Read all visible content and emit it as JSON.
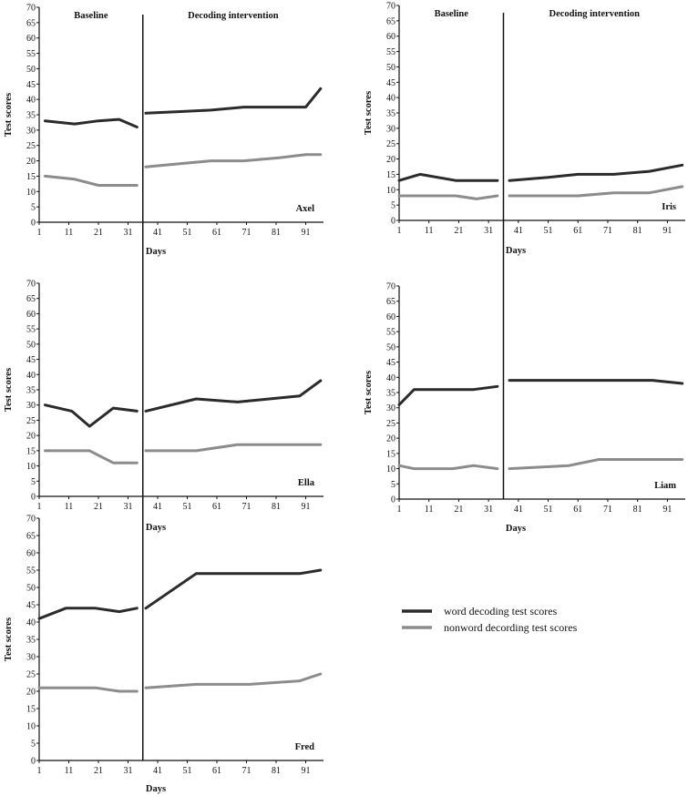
{
  "chart_data": [
    {
      "type": "line",
      "participant": "Axel",
      "ylabel": "Test scores",
      "xlabel": "Days",
      "phase_labels": [
        "Baseline",
        "Decoding intervention"
      ],
      "phase_change_day": 36,
      "yticks": [
        0,
        5,
        10,
        15,
        20,
        25,
        30,
        35,
        40,
        45,
        50,
        55,
        60,
        65,
        70
      ],
      "xticks": [
        1,
        11,
        21,
        31,
        41,
        51,
        61,
        71,
        81,
        91
      ],
      "xlim": [
        1,
        97
      ],
      "ylim": [
        0,
        70
      ],
      "series": [
        {
          "name": "word decoding test scores",
          "color": "#2b2b2b",
          "baseline": [
            [
              3,
              33
            ],
            [
              13,
              32
            ],
            [
              21,
              33
            ],
            [
              28,
              33.5
            ],
            [
              34,
              31
            ]
          ],
          "intervention": [
            [
              37,
              35.5
            ],
            [
              48,
              36
            ],
            [
              59,
              36.5
            ],
            [
              70,
              37.5
            ],
            [
              82,
              37.5
            ],
            [
              91,
              37.5
            ],
            [
              96,
              43.5
            ]
          ]
        },
        {
          "name": "nonword decording test scores",
          "color": "#8c8c8c",
          "baseline": [
            [
              3,
              15
            ],
            [
              13,
              14
            ],
            [
              21,
              12
            ],
            [
              28,
              12
            ],
            [
              34,
              12
            ]
          ],
          "intervention": [
            [
              37,
              18
            ],
            [
              48,
              19
            ],
            [
              59,
              20
            ],
            [
              70,
              20
            ],
            [
              82,
              21
            ],
            [
              91,
              22
            ],
            [
              96,
              22
            ]
          ]
        }
      ]
    },
    {
      "type": "line",
      "participant": "Iris",
      "ylabel": "Test scores",
      "xlabel": "Days",
      "phase_labels": [
        "Baseline",
        "Decoding intervention"
      ],
      "phase_change_day": 36,
      "yticks": [
        0,
        5,
        10,
        15,
        20,
        25,
        30,
        35,
        40,
        45,
        50,
        55,
        60,
        65,
        70
      ],
      "xticks": [
        1,
        11,
        21,
        31,
        41,
        51,
        61,
        71,
        81,
        91
      ],
      "xlim": [
        1,
        97
      ],
      "ylim": [
        0,
        70
      ],
      "series": [
        {
          "name": "word decoding test scores",
          "color": "#2b2b2b",
          "baseline": [
            [
              1,
              13
            ],
            [
              8,
              15
            ],
            [
              20,
              13
            ],
            [
              27,
              13
            ],
            [
              34,
              13
            ]
          ],
          "intervention": [
            [
              38,
              13
            ],
            [
              51,
              14
            ],
            [
              61,
              15
            ],
            [
              73,
              15
            ],
            [
              85,
              16
            ],
            [
              96,
              18
            ]
          ]
        },
        {
          "name": "nonword decording test scores",
          "color": "#8c8c8c",
          "baseline": [
            [
              1,
              8
            ],
            [
              8,
              8
            ],
            [
              20,
              8
            ],
            [
              27,
              7
            ],
            [
              34,
              8
            ]
          ],
          "intervention": [
            [
              38,
              8
            ],
            [
              51,
              8
            ],
            [
              61,
              8
            ],
            [
              73,
              9
            ],
            [
              85,
              9
            ],
            [
              96,
              11
            ]
          ]
        }
      ]
    },
    {
      "type": "line",
      "participant": "Ella",
      "ylabel": "Test scores",
      "xlabel": "Days",
      "phase_labels": [],
      "phase_change_day": 36,
      "yticks": [
        0,
        5,
        10,
        15,
        20,
        25,
        30,
        35,
        40,
        45,
        50,
        55,
        60,
        65,
        70
      ],
      "xticks": [
        1,
        11,
        21,
        31,
        41,
        51,
        61,
        71,
        81,
        91
      ],
      "xlim": [
        1,
        97
      ],
      "ylim": [
        0,
        70
      ],
      "series": [
        {
          "name": "word decoding test scores",
          "color": "#2b2b2b",
          "baseline": [
            [
              3,
              30
            ],
            [
              12,
              28
            ],
            [
              18,
              23
            ],
            [
              26,
              29
            ],
            [
              34,
              28
            ]
          ],
          "intervention": [
            [
              37,
              28
            ],
            [
              54,
              32
            ],
            [
              68,
              31
            ],
            [
              89,
              33
            ],
            [
              96,
              38
            ]
          ]
        },
        {
          "name": "nonword decording test scores",
          "color": "#8c8c8c",
          "baseline": [
            [
              3,
              15
            ],
            [
              12,
              15
            ],
            [
              18,
              15
            ],
            [
              26,
              11
            ],
            [
              34,
              11
            ]
          ],
          "intervention": [
            [
              37,
              15
            ],
            [
              54,
              15
            ],
            [
              68,
              17
            ],
            [
              89,
              17
            ],
            [
              96,
              17
            ]
          ]
        }
      ]
    },
    {
      "type": "line",
      "participant": "Liam",
      "ylabel": "Test scores",
      "xlabel": "Days",
      "phase_labels": [],
      "phase_change_day": 36,
      "yticks": [
        0,
        5,
        10,
        15,
        20,
        25,
        30,
        35,
        40,
        45,
        50,
        55,
        60,
        65,
        70
      ],
      "xticks": [
        1,
        11,
        21,
        31,
        41,
        51,
        61,
        71,
        81,
        91
      ],
      "xlim": [
        1,
        97
      ],
      "ylim": [
        0,
        70
      ],
      "series": [
        {
          "name": "word decoding test scores",
          "color": "#2b2b2b",
          "baseline": [
            [
              1,
              31
            ],
            [
              6,
              36
            ],
            [
              19,
              36
            ],
            [
              26,
              36
            ],
            [
              34,
              37
            ]
          ],
          "intervention": [
            [
              38,
              39
            ],
            [
              58,
              39
            ],
            [
              71,
              39
            ],
            [
              86,
              39
            ],
            [
              96,
              38
            ]
          ]
        },
        {
          "name": "nonword decording test scores",
          "color": "#8c8c8c",
          "baseline": [
            [
              1,
              11
            ],
            [
              6,
              10
            ],
            [
              19,
              10
            ],
            [
              26,
              11
            ],
            [
              34,
              10
            ]
          ],
          "intervention": [
            [
              38,
              10
            ],
            [
              58,
              11
            ],
            [
              68,
              13
            ],
            [
              86,
              13
            ],
            [
              96,
              13
            ]
          ]
        }
      ]
    },
    {
      "type": "line",
      "participant": "Fred",
      "ylabel": "Test scores",
      "xlabel": "Days",
      "phase_labels": [],
      "phase_change_day": 36,
      "yticks": [
        0,
        5,
        10,
        15,
        20,
        25,
        30,
        35,
        40,
        45,
        50,
        55,
        60,
        65,
        70
      ],
      "xticks": [
        1,
        11,
        21,
        31,
        41,
        51,
        61,
        71,
        81,
        91
      ],
      "xlim": [
        1,
        97
      ],
      "ylim": [
        0,
        70
      ],
      "series": [
        {
          "name": "word decoding test scores",
          "color": "#2b2b2b",
          "baseline": [
            [
              1,
              41
            ],
            [
              10,
              44
            ],
            [
              20,
              44
            ],
            [
              28,
              43
            ],
            [
              34,
              44
            ]
          ],
          "intervention": [
            [
              37,
              44
            ],
            [
              54,
              54
            ],
            [
              72,
              54
            ],
            [
              89,
              54
            ],
            [
              96,
              55
            ]
          ]
        },
        {
          "name": "nonword decording test scores",
          "color": "#8c8c8c",
          "baseline": [
            [
              1,
              21
            ],
            [
              10,
              21
            ],
            [
              20,
              21
            ],
            [
              28,
              20
            ],
            [
              34,
              20
            ]
          ],
          "intervention": [
            [
              37,
              21
            ],
            [
              54,
              22
            ],
            [
              72,
              22
            ],
            [
              89,
              23
            ],
            [
              96,
              25
            ]
          ]
        }
      ]
    }
  ],
  "legend": [
    {
      "label": "word decoding test scores",
      "color": "#2b2b2b"
    },
    {
      "label": "nonword decording test scores",
      "color": "#8c8c8c"
    }
  ]
}
